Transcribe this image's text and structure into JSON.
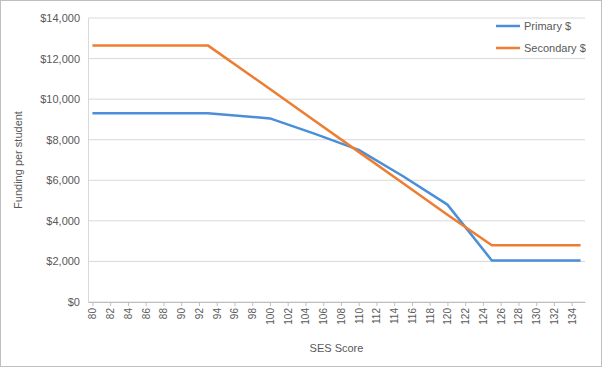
{
  "chart_data": {
    "type": "line",
    "x_label": "SES Score",
    "y_label": "Funding per student",
    "x": [
      80,
      93,
      100,
      105,
      110,
      115,
      120,
      125,
      135
    ],
    "series": [
      {
        "name": "Primary $",
        "color": "#4a8fd8",
        "values": [
          9300,
          9300,
          9050,
          8300,
          7500,
          6200,
          4800,
          2050,
          2050
        ]
      },
      {
        "name": "Secondary $",
        "color": "#ed7d31",
        "values": [
          12650,
          12650,
          10500,
          8950,
          7400,
          5850,
          4300,
          2800,
          2800
        ]
      }
    ],
    "xlim": [
      79.5,
      135.5
    ],
    "xticks": [
      80,
      82,
      84,
      86,
      88,
      90,
      92,
      94,
      96,
      98,
      100,
      102,
      104,
      106,
      108,
      110,
      112,
      114,
      116,
      118,
      120,
      122,
      124,
      126,
      128,
      130,
      132,
      134
    ],
    "ylim": [
      0,
      14000
    ],
    "yticks": [
      {
        "value": 0,
        "label": "$0"
      },
      {
        "value": 2000,
        "label": "$2,000"
      },
      {
        "value": 4000,
        "label": "$4,000"
      },
      {
        "value": 6000,
        "label": "$6,000"
      },
      {
        "value": 8000,
        "label": "$8,000"
      },
      {
        "value": 10000,
        "label": "$10,000"
      },
      {
        "value": 12000,
        "label": "$12,000"
      },
      {
        "value": 14000,
        "label": "$14,000"
      }
    ],
    "grid": true,
    "legend": "top-right"
  }
}
